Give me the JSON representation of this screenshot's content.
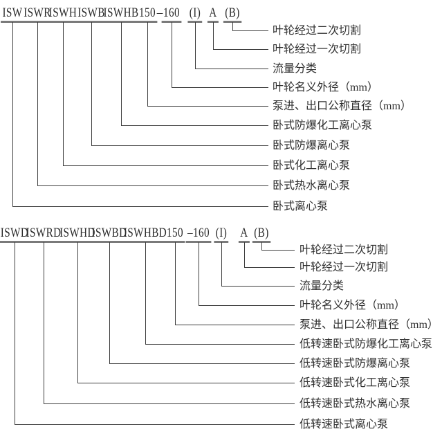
{
  "colors": {
    "background": "#ffffff",
    "text": "#2a2a2a",
    "connector_line": "#3c3c3c",
    "underline": "#7a7a7a"
  },
  "diagrams": [
    {
      "series": "ISW horizontal centrifugal pump model nomenclature",
      "code_tokens": [
        "ISW",
        "ISWR",
        "ISWH",
        "ISWB",
        "ISWHB",
        "150",
        "160",
        "(I)",
        "A",
        "(B)"
      ],
      "separator": "–",
      "labels": [
        "叶轮经过二次切割",
        "叶轮经过一次切割",
        "流量分类",
        "叶轮名义外径（mm）",
        "泵进、出口公称直径（mm）",
        "卧式防爆化工离心泵",
        "卧式防爆离心泵",
        "卧式化工离心泵",
        "卧式热水离心泵",
        "卧式离心泵"
      ]
    },
    {
      "series": "ISWD low-speed horizontal centrifugal pump model nomenclature",
      "code_tokens": [
        "ISWD",
        "ISWRD",
        "ISWHD",
        "ISWBD",
        "ISWHBD",
        "150",
        "–160",
        "(I)",
        "A",
        "(B)"
      ],
      "separator": "",
      "labels": [
        "叶轮经过二次切割",
        "叶轮经过一次切割",
        "流量分类",
        "叶轮名义外径（mm）",
        "泵进、出口公称直径（mm）",
        "低转速卧式防爆化工离心泵",
        "低转速卧式防爆离心泵",
        "低转速卧式化工离心泵",
        "低转速卧式热水离心泵",
        "低转速卧式离心泵"
      ]
    }
  ]
}
